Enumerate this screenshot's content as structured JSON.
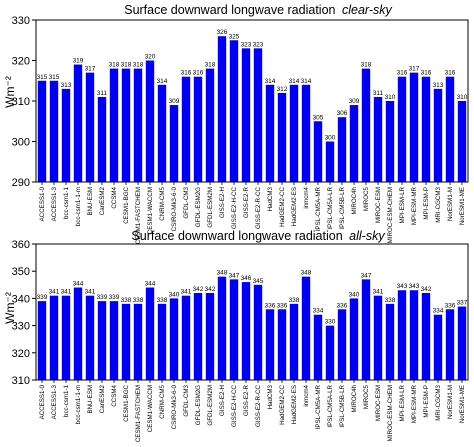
{
  "chart_data": [
    {
      "type": "bar",
      "title": "Surface downward longwave radiation",
      "title_emphasis": "clear-sky",
      "ylabel": "Wm⁻²",
      "xlabel": "",
      "ylim": [
        290,
        330
      ],
      "yticks": [
        290,
        300,
        310,
        320,
        330
      ],
      "grid": false,
      "bar_color": "#0000ee",
      "categories": [
        "ACCESS1-0",
        "ACCESS1-3",
        "bcc-csm1-1",
        "bcc-csm1-1-m",
        "BNU-ESM",
        "CanESM2",
        "CCSM4",
        "CESM1-BGC",
        "CESM1-FASTCHEM",
        "CESM1-WACCM",
        "CNRM-CM5",
        "CSIRO-Mk3-6-0",
        "GFDL-CM3",
        "GFDL-ESM2G",
        "GFDL-ESM2M",
        "GISS-E2-H",
        "GISS-E2-H-CC",
        "GISS-E2-R",
        "GISS-E2-R-CC",
        "HadCM3",
        "HadGEM2-CC",
        "HadGEM2-ES",
        "inmcm4",
        "IPSL-CM5A-MR",
        "IPSL-CM5A-LR",
        "IPSL-CM5B-LR",
        "MIROC4h",
        "MIROC5",
        "MIROC-ESM",
        "MIROC-ESM-CHEM",
        "MPI-ESM-LR",
        "MPI-ESM-MR",
        "MPI-ESM-P",
        "MRI-CGCM3",
        "NorESM1-M",
        "NorESM1-ME"
      ],
      "values": [
        315,
        315,
        313,
        319,
        317,
        311,
        318,
        318,
        318,
        320,
        314,
        309,
        316,
        316,
        318,
        326,
        325,
        323,
        323,
        314,
        312,
        314,
        314,
        305,
        300,
        306,
        309,
        318,
        311,
        310,
        316,
        317,
        316,
        313,
        316,
        310
      ]
    },
    {
      "type": "bar",
      "title": "Surface downward longwave radiation",
      "title_emphasis": "all-sky",
      "ylabel": "Wm⁻²",
      "xlabel": "",
      "ylim": [
        310,
        360
      ],
      "yticks": [
        310,
        320,
        330,
        340,
        350,
        360
      ],
      "grid": false,
      "bar_color": "#0000ee",
      "categories": [
        "ACCESS1-0",
        "ACCESS1-3",
        "bcc-csm1-1",
        "bcc-csm1-1-m",
        "BNU-ESM",
        "CanESM2",
        "CCSM4",
        "CESM1-BGC",
        "CESM1-FASTCHEM",
        "CESM1-WACCM",
        "CNRM-CM5",
        "CSIRO-Mk3-6-0",
        "GFDL-CM3",
        "GFDL-ESM2G",
        "GFDL-ESM2M",
        "GISS-E2-H",
        "GISS-E2-H-CC",
        "GISS-E2-R",
        "GISS-E2-R-CC",
        "HadCM3",
        "HadGEM2-CC",
        "HadGEM2-ES",
        "inmcm4",
        "IPSL-CM5A-MR",
        "IPSL-CM5A-LR",
        "IPSL-CM5B-LR",
        "MIROC4h",
        "MIROC5",
        "MIROC-ESM",
        "MIROC-ESM-CHEM",
        "MPI-ESM-LR",
        "MPI-ESM-MR",
        "MPI-ESM-P",
        "MRI-CGCM3",
        "NorESM1-M",
        "NorESM1-ME"
      ],
      "values": [
        339,
        341,
        341,
        344,
        341,
        339,
        339,
        338,
        338,
        344,
        338,
        340,
        341,
        342,
        342,
        348,
        347,
        346,
        345,
        336,
        336,
        338,
        348,
        334,
        330,
        336,
        340,
        347,
        341,
        338,
        343,
        343,
        342,
        334,
        336,
        337
      ]
    }
  ]
}
